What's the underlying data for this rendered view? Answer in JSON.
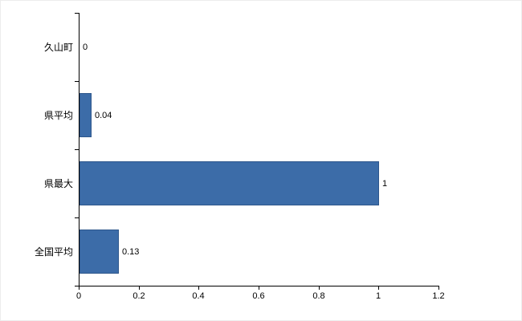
{
  "chart_data": {
    "type": "bar",
    "orientation": "horizontal",
    "categories": [
      "久山町",
      "県平均",
      "県最大",
      "全国平均"
    ],
    "values": [
      0,
      0.04,
      1,
      0.13
    ],
    "data_labels": [
      "0",
      "0.04",
      "1",
      "0.13"
    ],
    "x_ticks": [
      0,
      0.2,
      0.4,
      0.6,
      0.8,
      1,
      1.2
    ],
    "x_tick_labels": [
      "0",
      "0.2",
      "0.4",
      "0.6",
      "0.8",
      "1",
      "1.2"
    ],
    "xlim": [
      0,
      1.2
    ],
    "grid": false,
    "legend": false,
    "bar_color": "#3C6CA8",
    "bar_border_color": "#2E578C",
    "axis_color": "#000000",
    "background_color": "#FFFFFF"
  }
}
